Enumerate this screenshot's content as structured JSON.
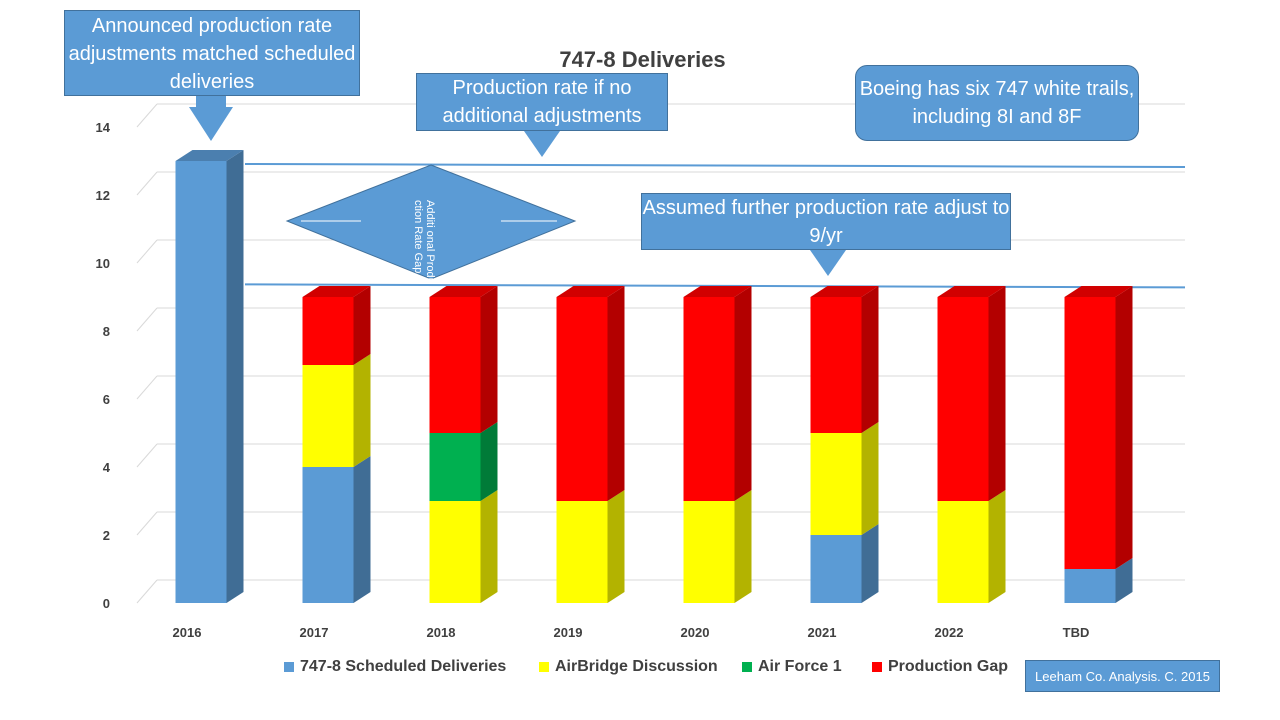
{
  "chart_data": {
    "type": "bar",
    "title": "747-8 Deliveries",
    "categories": [
      "2016",
      "2017",
      "2018",
      "2019",
      "2020",
      "2021",
      "2022",
      "TBD"
    ],
    "series": [
      {
        "name": "747-8 Scheduled Deliveries",
        "values": [
          13,
          4,
          0,
          0,
          0,
          2,
          0,
          1
        ]
      },
      {
        "name": "AirBridge Discussion",
        "values": [
          0,
          3,
          3,
          3,
          3,
          3,
          3,
          0
        ]
      },
      {
        "name": "Air Force 1",
        "values": [
          0,
          0,
          2,
          0,
          0,
          0,
          0,
          0
        ]
      },
      {
        "name": "Production Gap",
        "values": [
          0,
          2,
          4,
          6,
          6,
          4,
          6,
          8
        ]
      }
    ],
    "ylim": [
      0,
      14
    ],
    "yticks": [
      0,
      2,
      4,
      6,
      8,
      10,
      12,
      14
    ],
    "reference_lines": [
      13,
      9.4
    ],
    "grid": true,
    "legend": "bottom"
  },
  "colors": {
    "scheduled": "#5b9bd5",
    "airbridge": "#ffff00",
    "airforce": "#00b050",
    "gap": "#ff0000",
    "callout": "#5b9bd5"
  },
  "callouts": {
    "announced": "Announced production rate adjustments matched scheduled deliveries",
    "production_rate": "Production rate if no additional adjustments",
    "white_tails": "Boeing has six 747 white trails, including 8I and 8F",
    "assumed": "Assumed further production rate adjust to 9/yr",
    "gap_diamond": "Additi onal Produ ction Rate Gap"
  },
  "credit": "Leeham Co. Analysis. C. 2015"
}
